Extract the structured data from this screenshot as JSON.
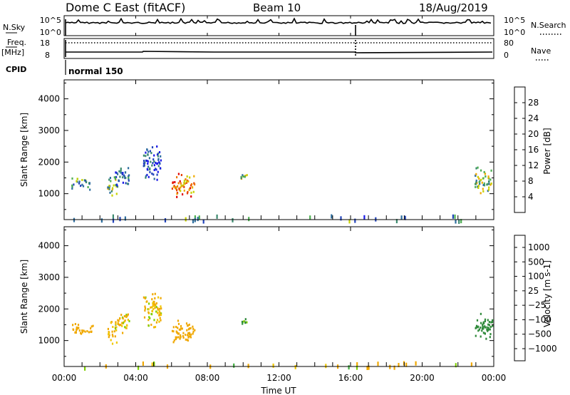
{
  "header": {
    "station": "Dome C East (fitACF)",
    "beam": "Beam 10",
    "date": "18/Aug/2019"
  },
  "summary_panels": {
    "nsky_label": "N.Sky",
    "nsearch_label": "N.Search",
    "noise_ticks": [
      "10^5",
      "10^0"
    ],
    "freq_label": "Freq.",
    "freq_unit": "[MHz]",
    "freq_ticks": [
      "18",
      "8"
    ],
    "nave_label": "Nave",
    "nave_ticks": [
      "80",
      "0"
    ],
    "cpid_label": "CPID",
    "cpid_value": "normal 150"
  },
  "colors": {
    "power": [
      "#1a1ae6",
      "#2244bb",
      "#2e6e9e",
      "#3b8a6e",
      "#4caf50",
      "#c8d200",
      "#f0a800",
      "#f07800",
      "#e84000",
      "#e00000"
    ],
    "velocity": [
      "#d40000",
      "#e84000",
      "#f07800",
      "#f0a800",
      "#f0c800",
      "#bdbdbd",
      "#7fd000",
      "#3fae3f",
      "#2f8a3a",
      "#2e6e9e",
      "#2244bb",
      "#1a1ae6"
    ]
  },
  "chart_data": [
    {
      "type": "heatmap",
      "panel": "power",
      "title": "",
      "xlabel": "Time UT",
      "ylabel": "Slant Range [km]",
      "x_unit": "hours UT",
      "xlim": [
        0,
        24
      ],
      "ylim": [
        180,
        4600
      ],
      "x_tick_labels": [
        "00:00",
        "04:00",
        "08:00",
        "12:00",
        "16:00",
        "20:00",
        "00:00"
      ],
      "x_tick_values": [
        0,
        4,
        8,
        12,
        16,
        20,
        24
      ],
      "y_tick_values": [
        1000,
        2000,
        3000,
        4000
      ],
      "colorbar": {
        "label": "Power [dB]",
        "ticks": [
          4,
          8,
          12,
          16,
          20,
          24,
          28
        ],
        "range": [
          0,
          32
        ]
      },
      "scatter_regions": [
        {
          "t": [
            0.4,
            1.4
          ],
          "r": [
            1150,
            1600
          ],
          "level": 0.35
        },
        {
          "t": [
            2.4,
            2.9
          ],
          "r": [
            900,
            1700
          ],
          "level": 0.45
        },
        {
          "t": [
            2.8,
            3.6
          ],
          "r": [
            1200,
            2000
          ],
          "level": 0.2
        },
        {
          "t": [
            4.4,
            5.4
          ],
          "r": [
            1400,
            2600
          ],
          "level": 0.15
        },
        {
          "t": [
            6.0,
            7.3
          ],
          "r": [
            900,
            1700
          ],
          "level": 0.75
        },
        {
          "t": [
            9.8,
            10.2
          ],
          "r": [
            1400,
            1800
          ],
          "level": 0.45
        },
        {
          "t": [
            22.9,
            23.9
          ],
          "r": [
            1000,
            1900
          ],
          "level": 0.45
        },
        {
          "t": [
            0.5,
            23.5
          ],
          "r": [
            180,
            350
          ],
          "level": 0.3
        }
      ]
    },
    {
      "type": "heatmap",
      "panel": "velocity",
      "title": "",
      "xlabel": "Time UT",
      "ylabel": "Slant Range [km]",
      "x_unit": "hours UT",
      "xlim": [
        0,
        24
      ],
      "ylim": [
        180,
        4600
      ],
      "x_tick_labels": [
        "00:00",
        "04:00",
        "08:00",
        "12:00",
        "16:00",
        "20:00",
        "00:00"
      ],
      "x_tick_values": [
        0,
        4,
        8,
        12,
        16,
        20,
        24
      ],
      "y_tick_values": [
        1000,
        2000,
        3000,
        4000
      ],
      "colorbar": {
        "label": "Velocity [m s-1]",
        "ticks": [
          1000,
          500,
          100,
          25,
          -25,
          -100,
          -500,
          -1000
        ]
      },
      "scatter_regions": [
        {
          "t": [
            0.4,
            1.6
          ],
          "r": [
            1150,
            1600
          ],
          "velocity": -300
        },
        {
          "t": [
            2.4,
            2.9
          ],
          "r": [
            900,
            1700
          ],
          "velocity": -150
        },
        {
          "t": [
            2.8,
            3.6
          ],
          "r": [
            1200,
            2000
          ],
          "velocity": -100
        },
        {
          "t": [
            4.4,
            5.4
          ],
          "r": [
            1400,
            2600
          ],
          "velocity": -100
        },
        {
          "t": [
            6.0,
            7.3
          ],
          "r": [
            900,
            1700
          ],
          "velocity": -300
        },
        {
          "t": [
            9.8,
            10.2
          ],
          "r": [
            1400,
            1800
          ],
          "velocity": 50
        },
        {
          "t": [
            22.9,
            23.9
          ],
          "r": [
            1000,
            1900
          ],
          "velocity": 300
        },
        {
          "t": [
            0.5,
            23.5
          ],
          "r": [
            180,
            350
          ],
          "velocity": -80
        }
      ]
    }
  ]
}
